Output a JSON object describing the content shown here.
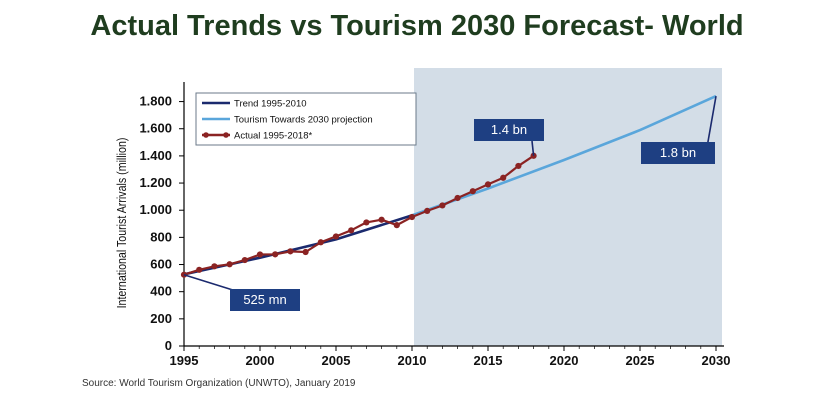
{
  "chart_data": {
    "type": "line",
    "title": "Actual Trends vs Tourism 2030 Forecast- World",
    "ylabel": "International Tourist Arrivals (million)",
    "xlabel": "",
    "xlim": [
      1995,
      2030
    ],
    "ylim": [
      0,
      1900
    ],
    "x_ticks": [
      "1995",
      "2000",
      "2005",
      "2010",
      "2015",
      "2020",
      "2025",
      "2030"
    ],
    "y_ticks": [
      {
        "value": 0,
        "label": "0"
      },
      {
        "value": 200,
        "label": "200"
      },
      {
        "value": 400,
        "label": "400"
      },
      {
        "value": 600,
        "label": "600"
      },
      {
        "value": 800,
        "label": "800"
      },
      {
        "value": 1000,
        "label": "1.000"
      },
      {
        "value": 1200,
        "label": "1.200"
      },
      {
        "value": 1400,
        "label": "1.400"
      },
      {
        "value": 1600,
        "label": "1.600"
      },
      {
        "value": 1800,
        "label": "1.800"
      }
    ],
    "forecast_region": {
      "start": 2010,
      "end": 2030,
      "color": "#d3dde7"
    },
    "legend_position": "top-left",
    "series": [
      {
        "name": "Trend 1995-2010",
        "color": "#1b2a6e",
        "points": [
          [
            1995,
            528
          ],
          [
            2000,
            650
          ],
          [
            2005,
            785
          ],
          [
            2010,
            962
          ]
        ]
      },
      {
        "name": "Tourism Towards 2030 projection",
        "color": "#5aa6db",
        "points": [
          [
            2010,
            962
          ],
          [
            2015,
            1160
          ],
          [
            2020,
            1370
          ],
          [
            2025,
            1590
          ],
          [
            2030,
            1840
          ]
        ]
      },
      {
        "name": "Actual 1995-2018*",
        "color": "#8b2323",
        "marker": "circle",
        "points": [
          [
            1995,
            525
          ],
          [
            1996,
            561
          ],
          [
            1997,
            587
          ],
          [
            1998,
            602
          ],
          [
            1999,
            633
          ],
          [
            2000,
            674
          ],
          [
            2001,
            675
          ],
          [
            2002,
            697
          ],
          [
            2003,
            692
          ],
          [
            2004,
            764
          ],
          [
            2005,
            807
          ],
          [
            2006,
            852
          ],
          [
            2007,
            910
          ],
          [
            2008,
            930
          ],
          [
            2009,
            890
          ],
          [
            2010,
            950
          ],
          [
            2011,
            995
          ],
          [
            2012,
            1035
          ],
          [
            2013,
            1090
          ],
          [
            2014,
            1140
          ],
          [
            2015,
            1190
          ],
          [
            2016,
            1239
          ],
          [
            2017,
            1326
          ],
          [
            2018,
            1401
          ]
        ]
      }
    ],
    "annotations": [
      {
        "text": "525 mn",
        "x": 1995,
        "y": 525
      },
      {
        "text": "1.4 bn",
        "x": 2018,
        "y": 1401
      },
      {
        "text": "1.8 bn",
        "x": 2030,
        "y": 1840
      }
    ]
  },
  "source": "Source: World Tourism Organization (UNWTO), January 2019"
}
